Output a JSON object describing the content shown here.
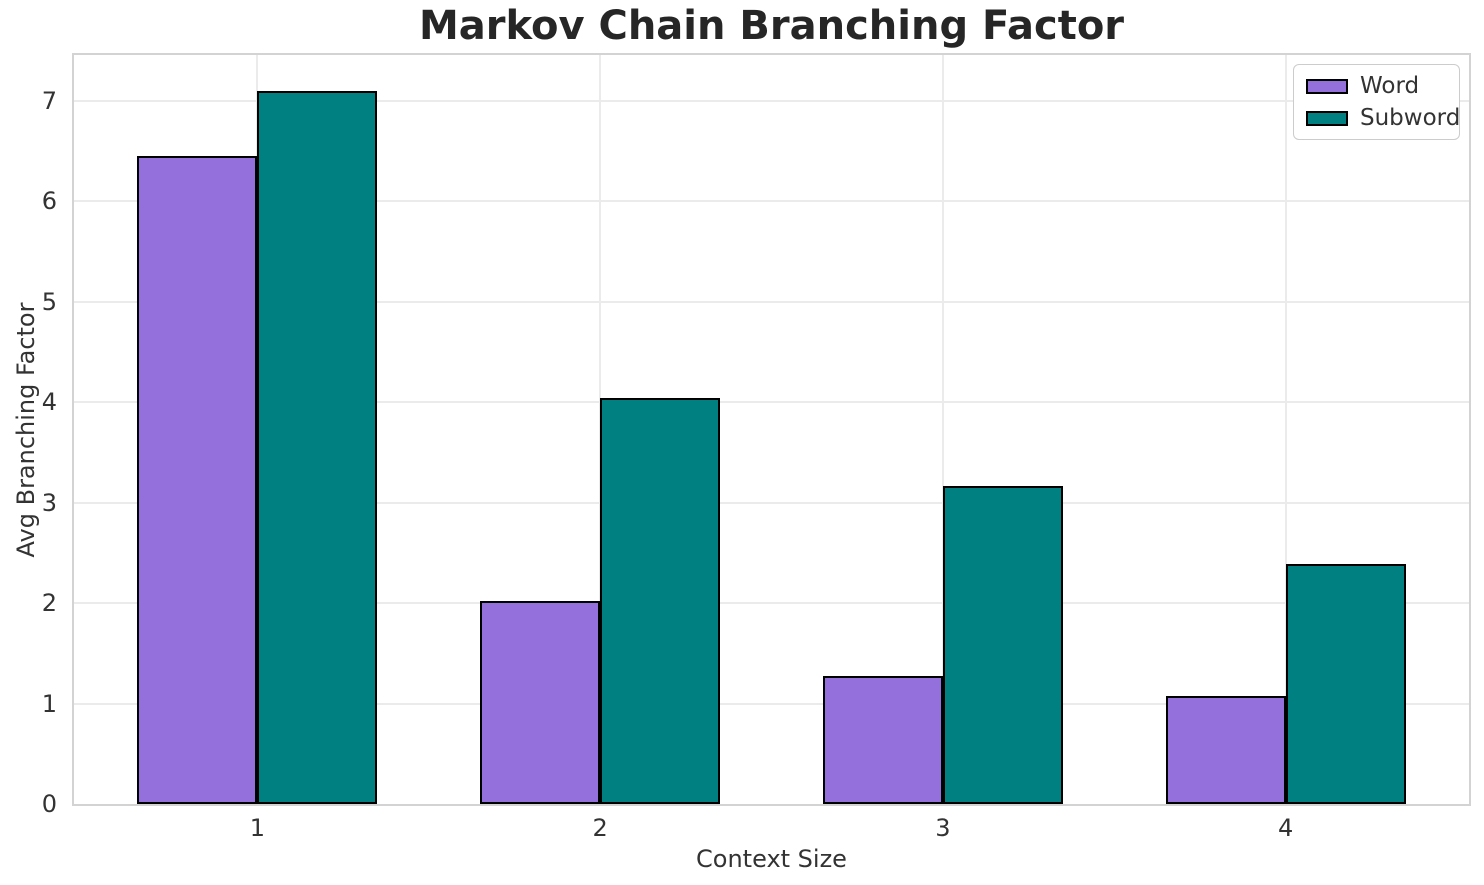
{
  "chart_data": {
    "type": "bar",
    "title": "Markov Chain Branching Factor",
    "xlabel": "Context Size",
    "ylabel": "Avg Branching Factor",
    "categories": [
      "1",
      "2",
      "3",
      "4"
    ],
    "x": [
      1,
      2,
      3,
      4
    ],
    "series": [
      {
        "name": "Word",
        "color": "#9370DB",
        "values": [
          6.45,
          2.02,
          1.27,
          1.08
        ]
      },
      {
        "name": "Subword",
        "color": "#008080",
        "values": [
          7.1,
          4.04,
          3.17,
          2.39
        ]
      }
    ],
    "bar_width": 0.35,
    "bar_edge_color": "#000000",
    "ylim": [
      0,
      7.455
    ],
    "xlim": [
      0.465,
      4.535
    ],
    "yticks": [
      0,
      1,
      2,
      3,
      4,
      5,
      6,
      7
    ],
    "grid": "both",
    "grid_color": "#ebebeb",
    "spine_color": "#d3d3d3",
    "legend_position": "upper right",
    "text_color": "#333333",
    "title_color": "#262626",
    "background": "#ffffff"
  }
}
